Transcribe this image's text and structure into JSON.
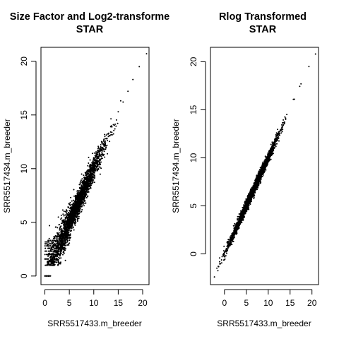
{
  "chart_data": [
    {
      "type": "scatter",
      "title": [
        "Size Factor and Log2-transforme",
        "STAR"
      ],
      "xlabel": "SRR5517433.m_breeder",
      "ylabel": "SRR5517434.m_breeder",
      "xlim": [
        -0.8,
        21.3
      ],
      "ylim": [
        -0.8,
        21.3
      ],
      "xticks": [
        0,
        5,
        10,
        15,
        20
      ],
      "yticks": [
        0,
        5,
        10,
        15,
        20
      ],
      "grid": false,
      "legend": "none",
      "marker_color": "#000000",
      "series": [
        {
          "description_points": [
            [
              0,
              0
            ],
            [
              0.5,
              1.1
            ],
            [
              1,
              2.1
            ],
            [
              2,
              2.8
            ],
            [
              3,
              3.4
            ],
            [
              4,
              4.5
            ],
            [
              5,
              5.2
            ],
            [
              6,
              6.1
            ],
            [
              7,
              7.1
            ],
            [
              8,
              8.0
            ],
            [
              9,
              9.0
            ],
            [
              10,
              10.1
            ],
            [
              11,
              11.0
            ],
            [
              12,
              12.2
            ],
            [
              13,
              13.0
            ],
            [
              14,
              14.1
            ],
            [
              15,
              15.3
            ],
            [
              16,
              16.2
            ],
            [
              17,
              17.2
            ],
            [
              18,
              18.3
            ],
            [
              19.3,
              19.5
            ],
            [
              20.8,
              20.7
            ]
          ]
        }
      ]
    },
    {
      "type": "scatter",
      "title": [
        "Rlog Transformed",
        "STAR"
      ],
      "xlabel": "SRR5517433.m_breeder",
      "ylabel": "SRR5517434.m_breeder",
      "xlim": [
        -3.2,
        21.5
      ],
      "ylim": [
        -3.2,
        21.5
      ],
      "xticks": [
        0,
        5,
        10,
        15,
        20
      ],
      "yticks": [
        0,
        5,
        10,
        15,
        20
      ],
      "grid": false,
      "legend": "none",
      "marker_color": "#000000",
      "series": [
        {
          "description_points": [
            [
              -2.3,
              -2.4
            ],
            [
              -1,
              -1.0
            ],
            [
              0,
              0.1
            ],
            [
              2,
              2.0
            ],
            [
              4,
              4.1
            ],
            [
              6,
              6.0
            ],
            [
              8,
              8.1
            ],
            [
              10,
              10.0
            ],
            [
              12,
              12.1
            ],
            [
              14,
              14.0
            ],
            [
              16,
              16.1
            ],
            [
              17.5,
              17.7
            ],
            [
              19.3,
              19.5
            ],
            [
              20.8,
              20.8
            ]
          ]
        }
      ]
    }
  ]
}
